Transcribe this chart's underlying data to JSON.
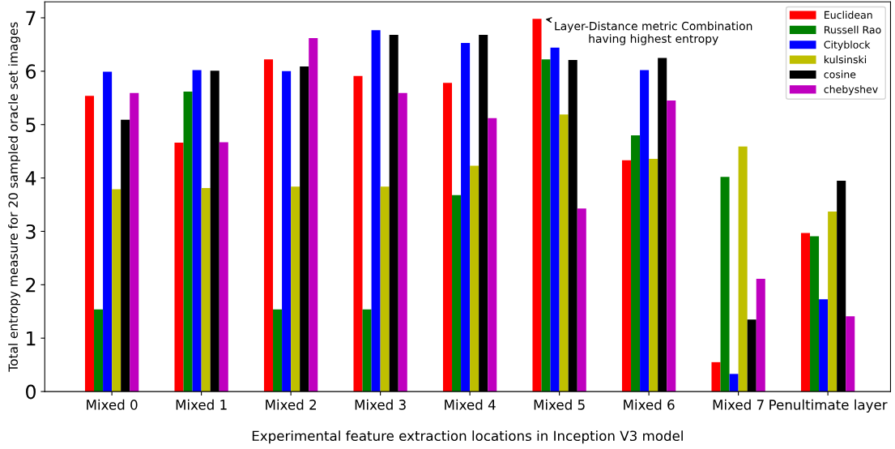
{
  "chart_data": {
    "type": "bar",
    "xlabel": "Experimental feature extraction locations in Inception V3 model",
    "ylabel": "Total entropy measure for 20 sampled oracle set images",
    "categories": [
      "Mixed 0",
      "Mixed 1",
      "Mixed 2",
      "Mixed 3",
      "Mixed 4",
      "Mixed 5",
      "Mixed 6",
      "Mixed 7",
      "Penultimate layer"
    ],
    "series": [
      {
        "name": "Euclidean",
        "color": "#ff0000",
        "values": [
          5.54,
          4.66,
          6.22,
          5.91,
          5.78,
          6.98,
          4.33,
          0.55,
          2.97
        ]
      },
      {
        "name": "Russell Rao",
        "color": "#008000",
        "values": [
          1.54,
          5.62,
          1.54,
          1.54,
          3.68,
          6.22,
          4.8,
          4.02,
          2.91
        ]
      },
      {
        "name": "Cityblock",
        "color": "#0000ff",
        "values": [
          5.99,
          6.02,
          6.0,
          6.77,
          6.53,
          6.44,
          6.02,
          0.33,
          1.73
        ]
      },
      {
        "name": "kulsinski",
        "color": "#bfbf00",
        "values": [
          3.79,
          3.81,
          3.84,
          3.84,
          4.23,
          5.19,
          4.36,
          4.59,
          3.37
        ]
      },
      {
        "name": "cosine",
        "color": "#000000",
        "values": [
          5.09,
          6.01,
          6.09,
          6.68,
          6.68,
          6.21,
          6.25,
          1.35,
          3.95
        ]
      },
      {
        "name": "chebyshev",
        "color": "#bf00bf",
        "values": [
          5.59,
          4.67,
          6.62,
          5.59,
          5.12,
          3.43,
          5.45,
          2.11,
          1.41
        ]
      }
    ],
    "ylim": [
      0,
      7.3
    ],
    "yticks": [
      0,
      1,
      2,
      3,
      4,
      5,
      6,
      7
    ],
    "grid": false,
    "legend": "top right",
    "annotations": [
      "Layer-Distance metric Combination\nhaving highest entropy"
    ]
  }
}
